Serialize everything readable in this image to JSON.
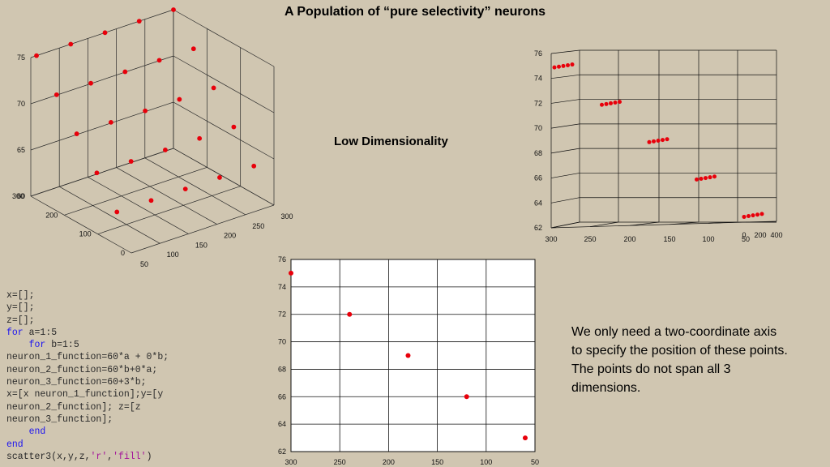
{
  "slide": {
    "title": "A Population of “pure selectivity” neurons",
    "subtitle": "Low Dimensionality",
    "explanation": "We only need a two-coordinate axis to specify the position of these points. The points do not span all 3 dimensions."
  },
  "code_lines": [
    [
      {
        "t": "x=[];",
        "c": ""
      }
    ],
    [
      {
        "t": "y=[];",
        "c": ""
      }
    ],
    [
      {
        "t": "z=[];",
        "c": ""
      }
    ],
    [
      {
        "t": "for",
        "c": "kw"
      },
      {
        "t": " a=1:5",
        "c": ""
      }
    ],
    [
      {
        "t": "    ",
        "c": ""
      },
      {
        "t": "for",
        "c": "kw"
      },
      {
        "t": " b=1:5",
        "c": ""
      }
    ],
    [
      {
        "t": "neuron_1_function=60*a + 0*b;",
        "c": ""
      }
    ],
    [
      {
        "t": "neuron_2_function=60*b+0*a;",
        "c": ""
      }
    ],
    [
      {
        "t": "neuron_3_function=60+3*b;",
        "c": ""
      }
    ],
    [
      {
        "t": "x=[x neuron_1_function];y=[y",
        "c": ""
      }
    ],
    [
      {
        "t": "neuron_2_function]; z=[z",
        "c": ""
      }
    ],
    [
      {
        "t": "neuron_3_function];",
        "c": ""
      }
    ],
    [
      {
        "t": "    ",
        "c": ""
      },
      {
        "t": "end",
        "c": "kw"
      }
    ],
    [
      {
        "t": "end",
        "c": "kw"
      }
    ],
    [
      {
        "t": "scatter3(x,y,z,",
        "c": ""
      },
      {
        "t": "'r'",
        "c": "str"
      },
      {
        "t": ",",
        "c": ""
      },
      {
        "t": "'fill'",
        "c": "str"
      },
      {
        "t": ")",
        "c": ""
      }
    ]
  ],
  "colors": {
    "background": "#d0c6b1",
    "marker": "#e8000b",
    "keyword": "#1c14f0",
    "string": "#a5169a"
  },
  "chart_data": [
    {
      "type": "scatter",
      "title": "",
      "note": "3D scatter of the 25 neurons (default view)",
      "x": [
        60,
        120,
        180,
        240,
        300,
        60,
        120,
        180,
        240,
        300,
        60,
        120,
        180,
        240,
        300,
        60,
        120,
        180,
        240,
        300,
        60,
        120,
        180,
        240,
        300
      ],
      "y": [
        60,
        60,
        60,
        60,
        60,
        120,
        120,
        120,
        120,
        120,
        180,
        180,
        180,
        180,
        180,
        240,
        240,
        240,
        240,
        240,
        300,
        300,
        300,
        300,
        300
      ],
      "z": [
        63,
        63,
        63,
        63,
        63,
        66,
        66,
        66,
        66,
        66,
        69,
        69,
        69,
        69,
        69,
        72,
        72,
        72,
        72,
        72,
        75,
        75,
        75,
        75,
        75
      ],
      "x_ticks": [
        "50",
        "100",
        "150",
        "200",
        "250",
        "300"
      ],
      "y_ticks": [
        "0",
        "100",
        "200",
        "300"
      ],
      "z_ticks": [
        "60",
        "65",
        "70",
        "75"
      ],
      "xlim": [
        50,
        300
      ],
      "ylim": [
        0,
        300
      ],
      "zlim": [
        60,
        75
      ],
      "grid": true
    },
    {
      "type": "scatter",
      "title": "",
      "note": "3D scatter rotated so the points lie in a plane",
      "x": [
        60,
        120,
        180,
        240,
        300,
        60,
        120,
        180,
        240,
        300,
        60,
        120,
        180,
        240,
        300,
        60,
        120,
        180,
        240,
        300,
        60,
        120,
        180,
        240,
        300
      ],
      "y": [
        60,
        60,
        60,
        60,
        60,
        120,
        120,
        120,
        120,
        120,
        180,
        180,
        180,
        180,
        180,
        240,
        240,
        240,
        240,
        240,
        300,
        300,
        300,
        300,
        300
      ],
      "z": [
        63,
        63,
        63,
        63,
        63,
        66,
        66,
        66,
        66,
        66,
        69,
        69,
        69,
        69,
        69,
        72,
        72,
        72,
        72,
        72,
        75,
        75,
        75,
        75,
        75
      ],
      "y_ticks": [
        "300",
        "250",
        "200",
        "150",
        "100",
        "50"
      ],
      "x_ticks": [
        "0",
        "200",
        "400"
      ],
      "z_ticks": [
        "62",
        "64",
        "66",
        "68",
        "70",
        "72",
        "74",
        "76"
      ],
      "zlim": [
        62,
        76
      ],
      "grid": true
    },
    {
      "type": "scatter",
      "title": "",
      "note": "2D view looking down the x axis",
      "x": [
        300,
        240,
        180,
        120,
        60
      ],
      "y": [
        75,
        72,
        69,
        66,
        63
      ],
      "x_ticks": [
        "300",
        "250",
        "200",
        "150",
        "100",
        "50"
      ],
      "y_ticks": [
        "62",
        "64",
        "66",
        "68",
        "70",
        "72",
        "74",
        "76"
      ],
      "xlim": [
        300,
        50
      ],
      "ylim": [
        62,
        76
      ],
      "grid": true
    }
  ]
}
